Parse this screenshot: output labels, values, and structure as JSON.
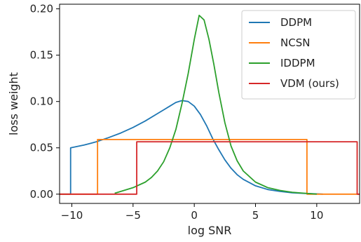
{
  "chart_data": {
    "type": "line",
    "xlabel": "log SNR",
    "ylabel": "loss weight",
    "xlim": [
      -11,
      13.5
    ],
    "ylim": [
      -0.01,
      0.205
    ],
    "xticks": [
      -10,
      -5,
      0,
      5,
      10
    ],
    "xtick_labels": [
      "−10",
      "−5",
      "0",
      "5",
      "10"
    ],
    "yticks": [
      0.0,
      0.05,
      0.1,
      0.15,
      0.2
    ],
    "ytick_labels": [
      "0.00",
      "0.05",
      "0.10",
      "0.15",
      "0.20"
    ],
    "grid": false,
    "legend_position": "top-right",
    "series": [
      {
        "name": "DDPM",
        "color": "#1f77b4",
        "x": [
          -11,
          -10.1,
          -10.1,
          -9,
          -8,
          -7,
          -6,
          -5,
          -4,
          -3,
          -2.5,
          -2,
          -1.5,
          -1,
          -0.5,
          0,
          0.5,
          1,
          1.5,
          2,
          2.5,
          3,
          3.5,
          4,
          5,
          6,
          7,
          8,
          9,
          10,
          10.5
        ],
        "y": [
          0.0,
          0.0,
          0.05,
          0.053,
          0.0565,
          0.061,
          0.066,
          0.072,
          0.079,
          0.087,
          0.091,
          0.095,
          0.099,
          0.101,
          0.1,
          0.095,
          0.086,
          0.074,
          0.06,
          0.048,
          0.037,
          0.028,
          0.021,
          0.016,
          0.009,
          0.005,
          0.003,
          0.0015,
          0.0008,
          0.0003,
          0.0
        ]
      },
      {
        "name": "NCSN",
        "color": "#ff7f0e",
        "x": [
          -11,
          -7.9,
          -7.9,
          9.2,
          9.2,
          13.5
        ],
        "y": [
          0.0,
          0.0,
          0.059,
          0.059,
          0.0,
          0.0
        ]
      },
      {
        "name": "IDDPM",
        "color": "#2ca02c",
        "x": [
          -6.5,
          -6,
          -5,
          -4,
          -3.5,
          -3,
          -2.5,
          -2,
          -1.5,
          -1,
          -0.5,
          0,
          0.4,
          0.8,
          1.2,
          1.6,
          2,
          2.5,
          3,
          3.5,
          4,
          5,
          6,
          7,
          8,
          9,
          10
        ],
        "y": [
          0.001,
          0.003,
          0.007,
          0.013,
          0.018,
          0.025,
          0.035,
          0.05,
          0.07,
          0.098,
          0.13,
          0.167,
          0.193,
          0.188,
          0.167,
          0.14,
          0.11,
          0.077,
          0.052,
          0.036,
          0.025,
          0.013,
          0.007,
          0.004,
          0.002,
          0.001,
          0.0
        ]
      },
      {
        "name": "VDM (ours)",
        "color": "#d62728",
        "x": [
          -11,
          -4.7,
          -4.7,
          13.3,
          13.3,
          13.5
        ],
        "y": [
          0.0,
          0.0,
          0.0565,
          0.0565,
          0.0,
          0.0
        ]
      }
    ]
  }
}
